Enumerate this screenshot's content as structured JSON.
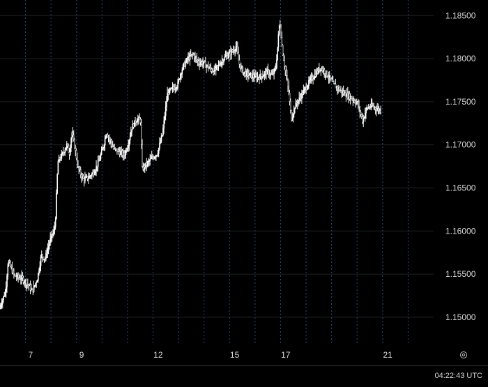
{
  "chart_data": {
    "type": "candlestick",
    "title": "",
    "xlabel": "",
    "ylabel": "",
    "ylim": [
      1.147,
      1.1868
    ],
    "xlim": [
      5.8,
      22.8
    ],
    "grid": true,
    "y_ticks": [
      "1.15000",
      "1.15500",
      "1.16000",
      "1.16500",
      "1.17000",
      "1.17500",
      "1.18000",
      "1.18500"
    ],
    "x_ticks": [
      {
        "label": "7",
        "value": 7
      },
      {
        "label": "9",
        "value": 9
      },
      {
        "label": "12",
        "value": 12
      },
      {
        "label": "15",
        "value": 15
      },
      {
        "label": "17",
        "value": 17
      },
      {
        "label": "21",
        "value": 21
      }
    ],
    "vertical_dividers": [
      6.8,
      7.8,
      8.8,
      9.8,
      10.8,
      11.8,
      12.8,
      13.8,
      14.8,
      15.8,
      16.8,
      17.8,
      18.8,
      19.8,
      20.8,
      21.8
    ],
    "price_path": [
      [
        5.8,
        1.151
      ],
      [
        6.05,
        1.153
      ],
      [
        6.15,
        1.1565
      ],
      [
        6.25,
        1.1558
      ],
      [
        6.4,
        1.1548
      ],
      [
        6.55,
        1.1546
      ],
      [
        6.7,
        1.1545
      ],
      [
        6.95,
        1.1537
      ],
      [
        7.1,
        1.153
      ],
      [
        7.3,
        1.1545
      ],
      [
        7.45,
        1.1572
      ],
      [
        7.6,
        1.1568
      ],
      [
        7.8,
        1.159
      ],
      [
        7.95,
        1.16
      ],
      [
        8.0,
        1.161
      ],
      [
        8.1,
        1.168
      ],
      [
        8.3,
        1.169
      ],
      [
        8.45,
        1.17
      ],
      [
        8.55,
        1.169
      ],
      [
        8.65,
        1.1715
      ],
      [
        8.75,
        1.17
      ],
      [
        8.9,
        1.1672
      ],
      [
        9.1,
        1.166
      ],
      [
        9.3,
        1.1662
      ],
      [
        9.5,
        1.1668
      ],
      [
        9.7,
        1.168
      ],
      [
        9.9,
        1.17
      ],
      [
        10.0,
        1.1715
      ],
      [
        10.1,
        1.1708
      ],
      [
        10.3,
        1.1695
      ],
      [
        10.5,
        1.1692
      ],
      [
        10.7,
        1.1688
      ],
      [
        10.85,
        1.17
      ],
      [
        11.0,
        1.172
      ],
      [
        11.2,
        1.173
      ],
      [
        11.35,
        1.1728
      ],
      [
        11.4,
        1.1672
      ],
      [
        11.6,
        1.1678
      ],
      [
        11.8,
        1.1685
      ],
      [
        12.0,
        1.169
      ],
      [
        12.2,
        1.1712
      ],
      [
        12.4,
        1.176
      ],
      [
        12.6,
        1.1765
      ],
      [
        12.8,
        1.177
      ],
      [
        12.9,
        1.1782
      ],
      [
        13.0,
        1.179
      ],
      [
        13.2,
        1.18
      ],
      [
        13.4,
        1.1805
      ],
      [
        13.6,
        1.1796
      ],
      [
        13.8,
        1.1795
      ],
      [
        14.0,
        1.179
      ],
      [
        14.2,
        1.1785
      ],
      [
        14.4,
        1.1792
      ],
      [
        14.6,
        1.18
      ],
      [
        14.8,
        1.1805
      ],
      [
        15.0,
        1.181
      ],
      [
        15.1,
        1.1815
      ],
      [
        15.2,
        1.1795
      ],
      [
        15.35,
        1.1785
      ],
      [
        15.5,
        1.1782
      ],
      [
        15.7,
        1.178
      ],
      [
        15.9,
        1.1778
      ],
      [
        16.1,
        1.178
      ],
      [
        16.3,
        1.1785
      ],
      [
        16.5,
        1.178
      ],
      [
        16.65,
        1.179
      ],
      [
        16.8,
        1.1845
      ],
      [
        16.9,
        1.181
      ],
      [
        17.0,
        1.179
      ],
      [
        17.15,
        1.1762
      ],
      [
        17.25,
        1.173
      ],
      [
        17.4,
        1.1745
      ],
      [
        17.6,
        1.1755
      ],
      [
        17.8,
        1.1765
      ],
      [
        18.0,
        1.1775
      ],
      [
        18.2,
        1.1782
      ],
      [
        18.4,
        1.179
      ],
      [
        18.55,
        1.1785
      ],
      [
        18.7,
        1.178
      ],
      [
        18.9,
        1.177
      ],
      [
        19.1,
        1.1765
      ],
      [
        19.3,
        1.176
      ],
      [
        19.5,
        1.1757
      ],
      [
        19.7,
        1.1752
      ],
      [
        19.85,
        1.1748
      ],
      [
        19.95,
        1.1738
      ],
      [
        20.05,
        1.1728
      ],
      [
        20.2,
        1.1742
      ],
      [
        20.4,
        1.1745
      ],
      [
        20.6,
        1.1742
      ],
      [
        20.75,
        1.174
      ]
    ]
  },
  "status_bar": {
    "clock": "04:22:43 UTC",
    "settings_icon": "gear-icon"
  },
  "colors": {
    "background": "#000000",
    "grid": "#1f1f1f",
    "divider": "#2a4a77",
    "candle": "#ffffff",
    "text": "#d9d9d9"
  }
}
